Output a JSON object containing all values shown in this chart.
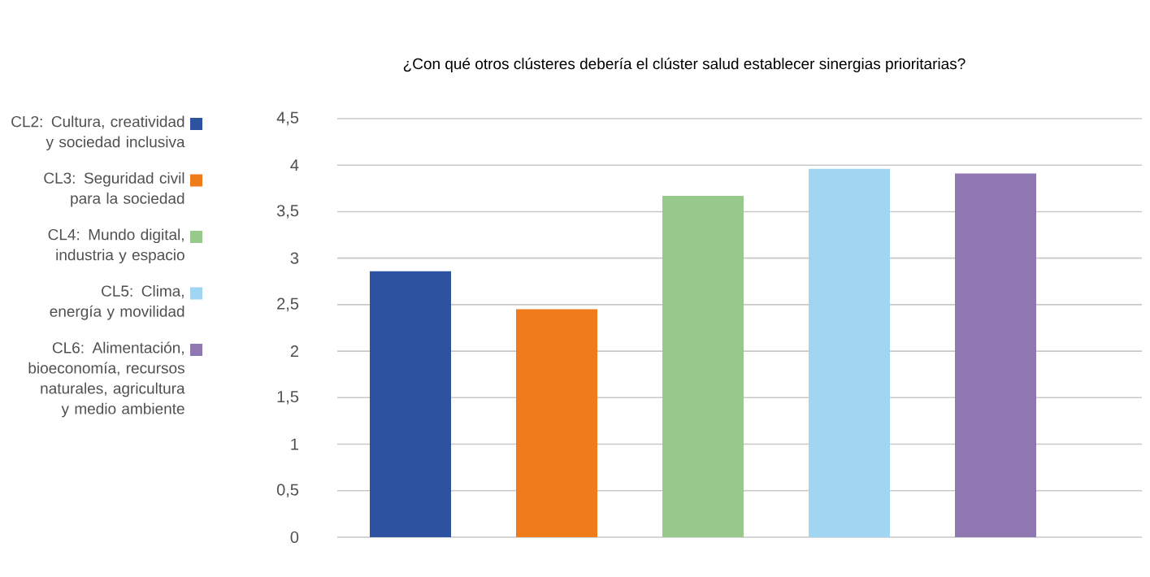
{
  "chart_data": {
    "type": "bar",
    "title": "¿Con qué otros clústeres debería el clúster salud establecer sinergias prioritarias?",
    "categories": [
      null,
      null,
      null,
      null,
      null
    ],
    "series": [
      {
        "name": "CL2: Cultura, creatividad y sociedad inclusiva",
        "color": "#2c52a0",
        "values": [
          2.86,
          null,
          null,
          null,
          null
        ]
      },
      {
        "name": "CL3: Seguridad civil para la sociedad",
        "color": "#ef7b1a",
        "values": [
          null,
          2.45,
          null,
          null,
          null
        ]
      },
      {
        "name": "CL4: Mundo digital, industria y espacio",
        "color": "#98c98c",
        "values": [
          null,
          null,
          3.67,
          null,
          null
        ]
      },
      {
        "name": "CL5: Clima, energía y movilidad",
        "color": "#a0d6f2",
        "values": [
          null,
          null,
          null,
          3.96,
          null
        ]
      },
      {
        "name": "CL6: Alimentación, bioeconomía, recursos naturales, agricultura y medio ambiente",
        "color": "#8f77b2",
        "values": [
          null,
          null,
          null,
          null,
          3.91
        ]
      }
    ],
    "ylim": [
      0,
      4.5
    ],
    "yticks": [
      0,
      {
        "value": 0.5,
        "label": "0,5"
      },
      1,
      {
        "value": 1.5,
        "label": "1,5"
      },
      2,
      {
        "value": 2.5,
        "label": "2,5"
      },
      3,
      {
        "value": 3.5,
        "label": "3,5"
      },
      4,
      {
        "value": 4.5,
        "label": "4,5"
      }
    ],
    "grid": "y",
    "legend": "left"
  }
}
